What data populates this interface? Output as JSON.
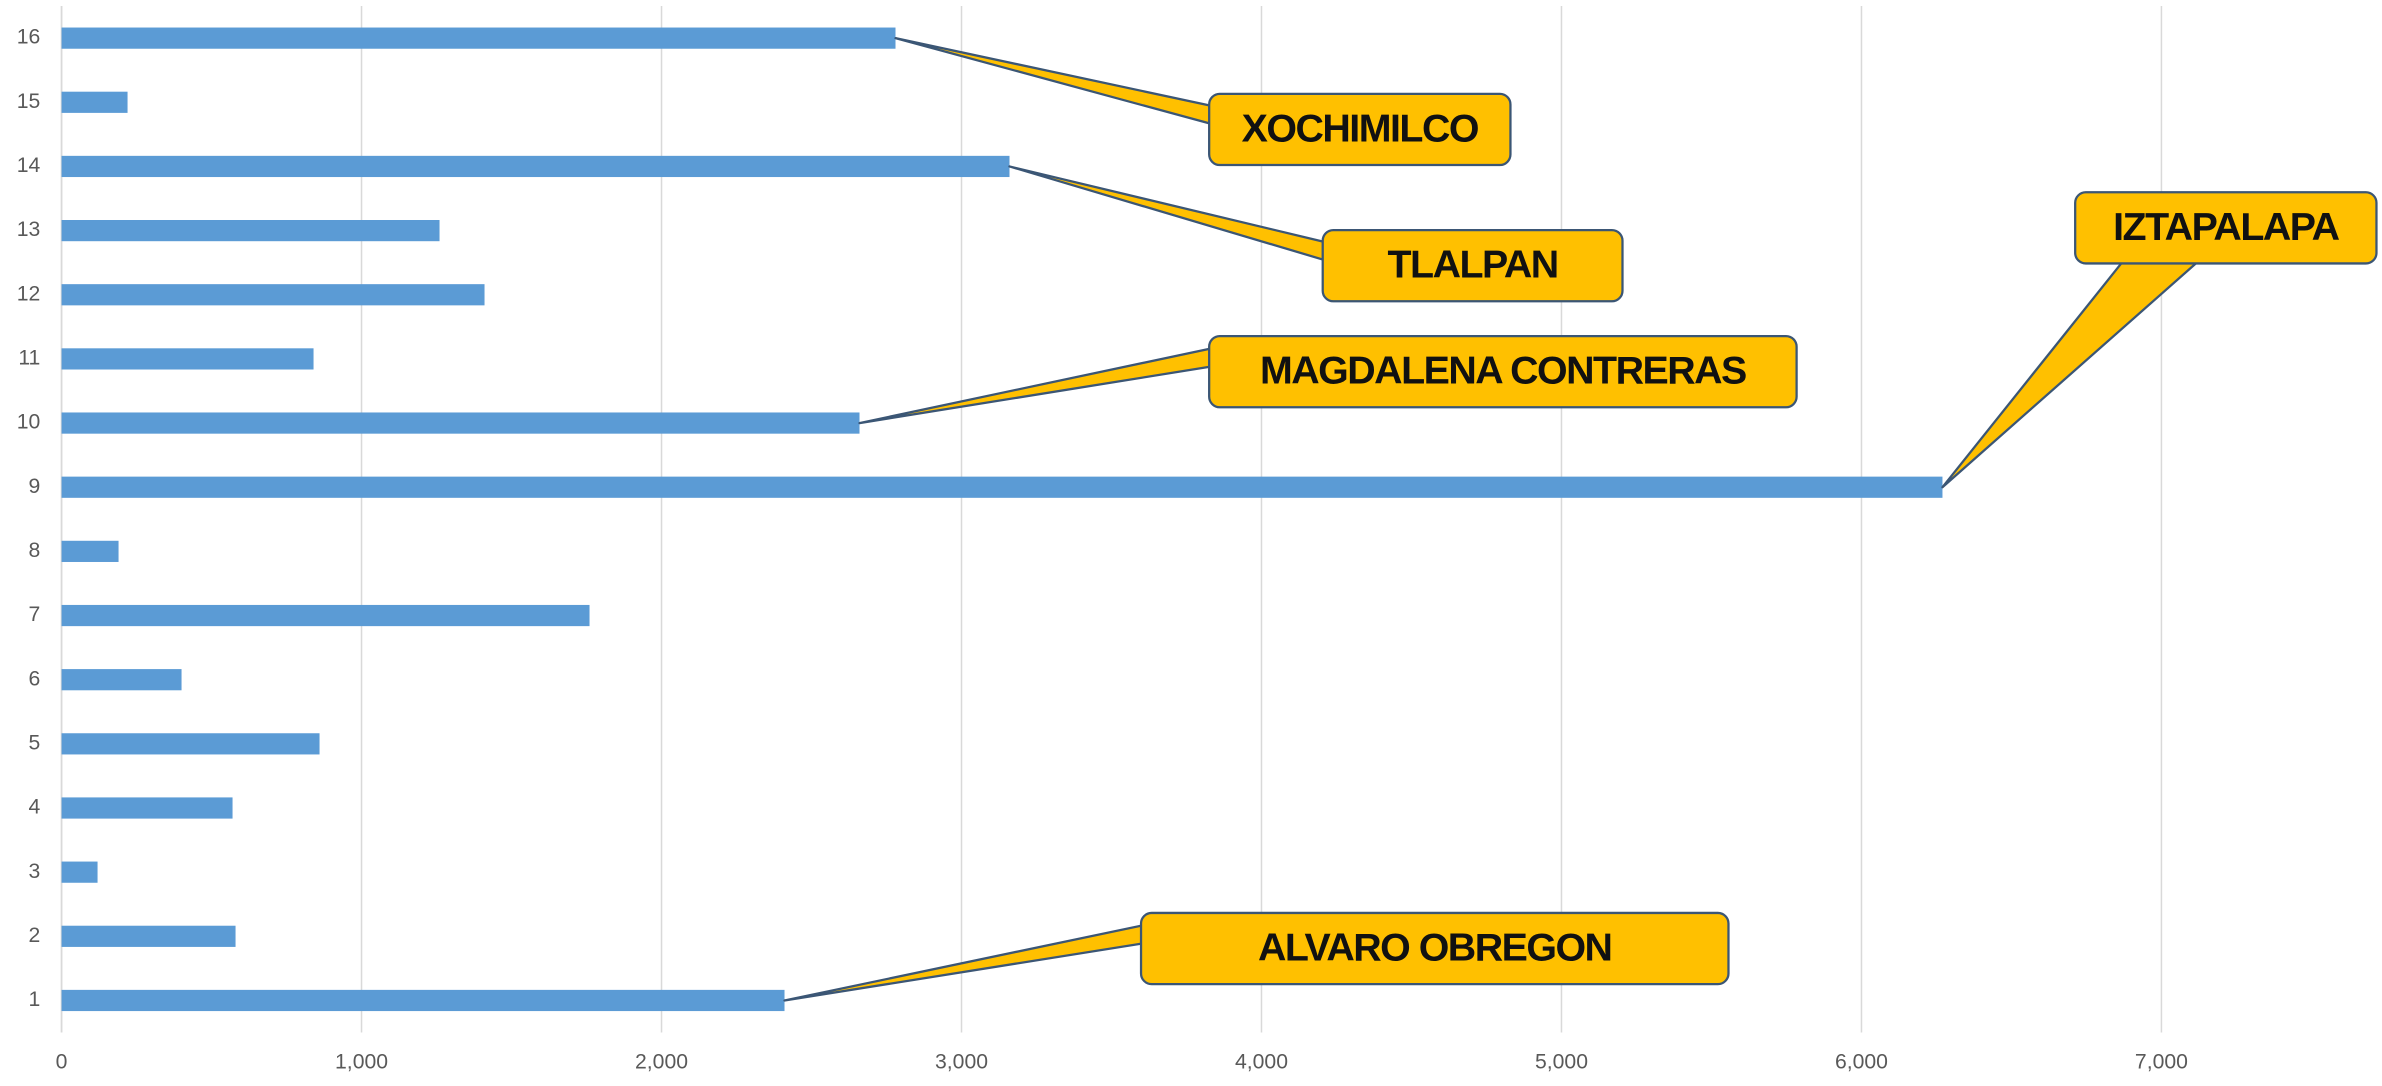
{
  "chart_data": {
    "type": "bar",
    "orientation": "horizontal",
    "categories": [
      "1",
      "2",
      "3",
      "4",
      "5",
      "6",
      "7",
      "8",
      "9",
      "10",
      "11",
      "12",
      "13",
      "14",
      "15",
      "16"
    ],
    "values": [
      2410,
      580,
      120,
      570,
      860,
      400,
      1760,
      190,
      6270,
      2660,
      840,
      1410,
      1260,
      3160,
      220,
      2780
    ],
    "color": "#5b9bd5",
    "xlim": [
      0,
      7700
    ],
    "xticks": [
      0,
      {
        "value": 1000,
        "label": "1,000"
      },
      {
        "value": 2000,
        "label": "2,000"
      },
      {
        "value": 3000,
        "label": "3,000"
      },
      {
        "value": 4000,
        "label": "4,000"
      },
      {
        "value": 5000,
        "label": "5,000"
      },
      {
        "value": 6000,
        "label": "6,000"
      },
      {
        "value": 7000,
        "label": "7,000"
      }
    ],
    "grid": true,
    "annotations": [
      {
        "text": "XOCHIMILCO",
        "category": "16"
      },
      {
        "text": "TLALPAN",
        "category": "14"
      },
      {
        "text": "MAGDALENA CONTRERAS",
        "category": "10"
      },
      {
        "text": "IZTAPALAPA",
        "category": "9"
      },
      {
        "text": "ALVARO OBREGON",
        "category": "1"
      }
    ]
  }
}
